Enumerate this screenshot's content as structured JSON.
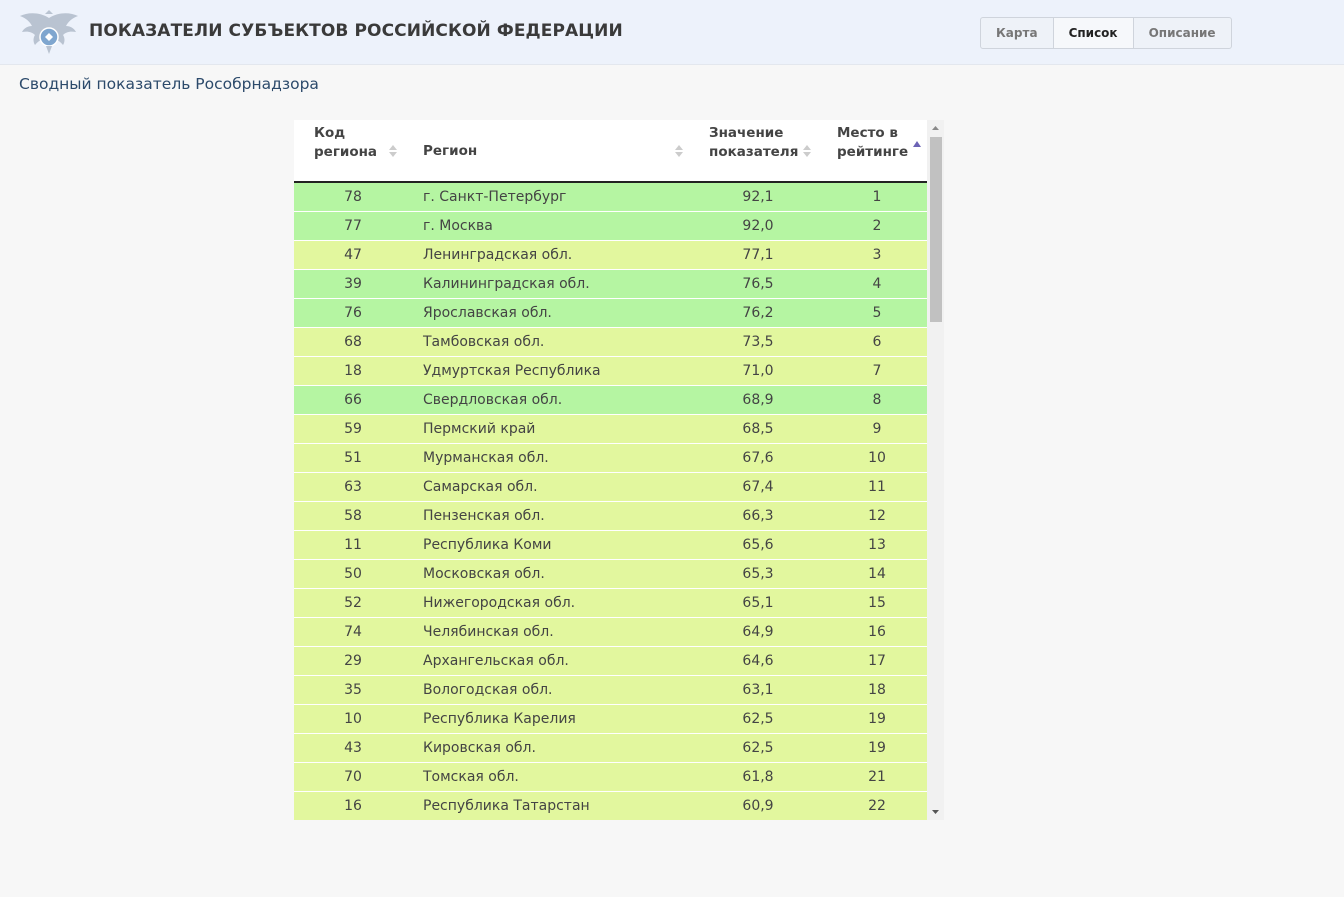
{
  "header": {
    "title": "ПОКАЗАТЕЛИ СУБЪЕКТОВ РОССИЙСКОЙ ФЕДЕРАЦИИ",
    "logo_icon": "eagle-emblem-icon",
    "nav": [
      {
        "label": "Карта",
        "active": false
      },
      {
        "label": "Список",
        "active": true
      },
      {
        "label": "Описание",
        "active": false
      }
    ]
  },
  "subtitle": "Сводный показатель Рособрнадзора",
  "table": {
    "columns": {
      "code": [
        "Код",
        "региона"
      ],
      "region": [
        "Регион"
      ],
      "value": [
        "Значение",
        "показателя"
      ],
      "rank": [
        "Место в",
        "рейтинге"
      ]
    },
    "sorted_by": "rank",
    "sort_direction": "asc",
    "colors": {
      "high": "#b5f5a2",
      "mid": "#e2f79e",
      "header_sort_active": "#6c63b5",
      "header_sort_inactive": "#cccccc"
    },
    "rows": [
      {
        "code": "78",
        "region": "г. Санкт-Петербург",
        "value": "92,1",
        "rank": "1",
        "level": "high"
      },
      {
        "code": "77",
        "region": "г. Москва",
        "value": "92,0",
        "rank": "2",
        "level": "high"
      },
      {
        "code": "47",
        "region": "Ленинградская обл.",
        "value": "77,1",
        "rank": "3",
        "level": "mid"
      },
      {
        "code": "39",
        "region": "Калининградская обл.",
        "value": "76,5",
        "rank": "4",
        "level": "high"
      },
      {
        "code": "76",
        "region": "Ярославская обл.",
        "value": "76,2",
        "rank": "5",
        "level": "high"
      },
      {
        "code": "68",
        "region": "Тамбовская обл.",
        "value": "73,5",
        "rank": "6",
        "level": "mid"
      },
      {
        "code": "18",
        "region": "Удмуртская Республика",
        "value": "71,0",
        "rank": "7",
        "level": "mid"
      },
      {
        "code": "66",
        "region": "Свердловская обл.",
        "value": "68,9",
        "rank": "8",
        "level": "high"
      },
      {
        "code": "59",
        "region": "Пермский край",
        "value": "68,5",
        "rank": "9",
        "level": "mid"
      },
      {
        "code": "51",
        "region": "Мурманская обл.",
        "value": "67,6",
        "rank": "10",
        "level": "mid"
      },
      {
        "code": "63",
        "region": "Самарская обл.",
        "value": "67,4",
        "rank": "11",
        "level": "mid"
      },
      {
        "code": "58",
        "region": "Пензенская обл.",
        "value": "66,3",
        "rank": "12",
        "level": "mid"
      },
      {
        "code": "11",
        "region": "Республика Коми",
        "value": "65,6",
        "rank": "13",
        "level": "mid"
      },
      {
        "code": "50",
        "region": "Московская обл.",
        "value": "65,3",
        "rank": "14",
        "level": "mid"
      },
      {
        "code": "52",
        "region": "Нижегородская обл.",
        "value": "65,1",
        "rank": "15",
        "level": "mid"
      },
      {
        "code": "74",
        "region": "Челябинская обл.",
        "value": "64,9",
        "rank": "16",
        "level": "mid"
      },
      {
        "code": "29",
        "region": "Архангельская обл.",
        "value": "64,6",
        "rank": "17",
        "level": "mid"
      },
      {
        "code": "35",
        "region": "Вологодская обл.",
        "value": "63,1",
        "rank": "18",
        "level": "mid"
      },
      {
        "code": "10",
        "region": "Республика Карелия",
        "value": "62,5",
        "rank": "19",
        "level": "mid"
      },
      {
        "code": "43",
        "region": "Кировская обл.",
        "value": "62,5",
        "rank": "19",
        "level": "mid"
      },
      {
        "code": "70",
        "region": "Томская обл.",
        "value": "61,8",
        "rank": "21",
        "level": "mid"
      },
      {
        "code": "16",
        "region": "Республика Татарстан",
        "value": "60,9",
        "rank": "22",
        "level": "mid"
      }
    ]
  }
}
